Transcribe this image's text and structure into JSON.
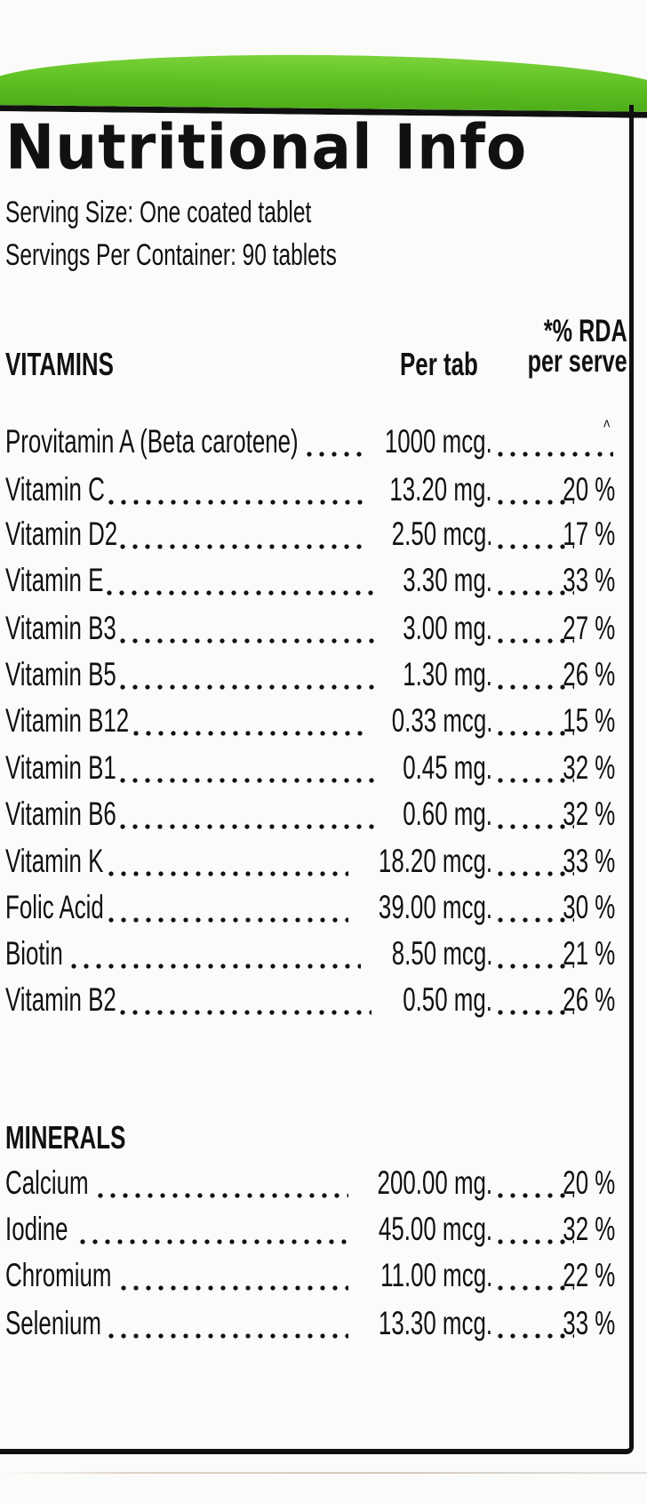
{
  "label": {
    "title": "Nutritional Info",
    "serving_size": "Serving Size: One coated tablet",
    "servings_per_container": "Servings Per Container: 90 tablets",
    "colors": {
      "band": "#5bbf22",
      "border": "#111111",
      "background": "#fbfbfa"
    }
  },
  "table": {
    "vitamins_header": "VITAMINS",
    "per_tab_header": "Per tab",
    "rda_header_line1": "*% RDA",
    "rda_header_line2": "per serve",
    "minerals_header": "MINERALS",
    "vitamins": [
      {
        "name": "Provitamin A (Beta carotene)",
        "amount": "1000 mcg.",
        "rda": "^"
      },
      {
        "name": "Vitamin C",
        "amount": "13.20 mg.",
        "rda": "20 %"
      },
      {
        "name": "Vitamin D2",
        "amount": "2.50 mcg.",
        "rda": "17 %"
      },
      {
        "name": "Vitamin E",
        "amount": "3.30 mg.",
        "rda": "33 %"
      },
      {
        "name": "Vitamin B3",
        "amount": "3.00 mg.",
        "rda": "27 %"
      },
      {
        "name": "Vitamin B5",
        "amount": "1.30 mg.",
        "rda": "26 %"
      },
      {
        "name": "Vitamin B12",
        "amount": "0.33 mcg.",
        "rda": "15 %"
      },
      {
        "name": "Vitamin B1",
        "amount": "0.45 mg.",
        "rda": "32 %"
      },
      {
        "name": "Vitamin B6",
        "amount": "0.60 mg.",
        "rda": "32 %"
      },
      {
        "name": "Vitamin K",
        "amount": "18.20 mcg.",
        "rda": "33 %"
      },
      {
        "name": "Folic Acid",
        "amount": "39.00 mcg.",
        "rda": "30 %"
      },
      {
        "name": "Biotin",
        "amount": "8.50 mcg.",
        "rda": "21 %"
      },
      {
        "name": "Vitamin B2",
        "amount": "0.50 mg.",
        "rda": "26 %"
      }
    ],
    "minerals": [
      {
        "name": "Calcium",
        "amount": "200.00 mg.",
        "rda": "20 %"
      },
      {
        "name": "Iodine",
        "amount": "45.00 mcg.",
        "rda": "32 %"
      },
      {
        "name": "Chromium",
        "amount": "11.00 mcg.",
        "rda": "22 %"
      },
      {
        "name": "Selenium",
        "amount": "13.30 mcg.",
        "rda": "33 %"
      }
    ]
  }
}
